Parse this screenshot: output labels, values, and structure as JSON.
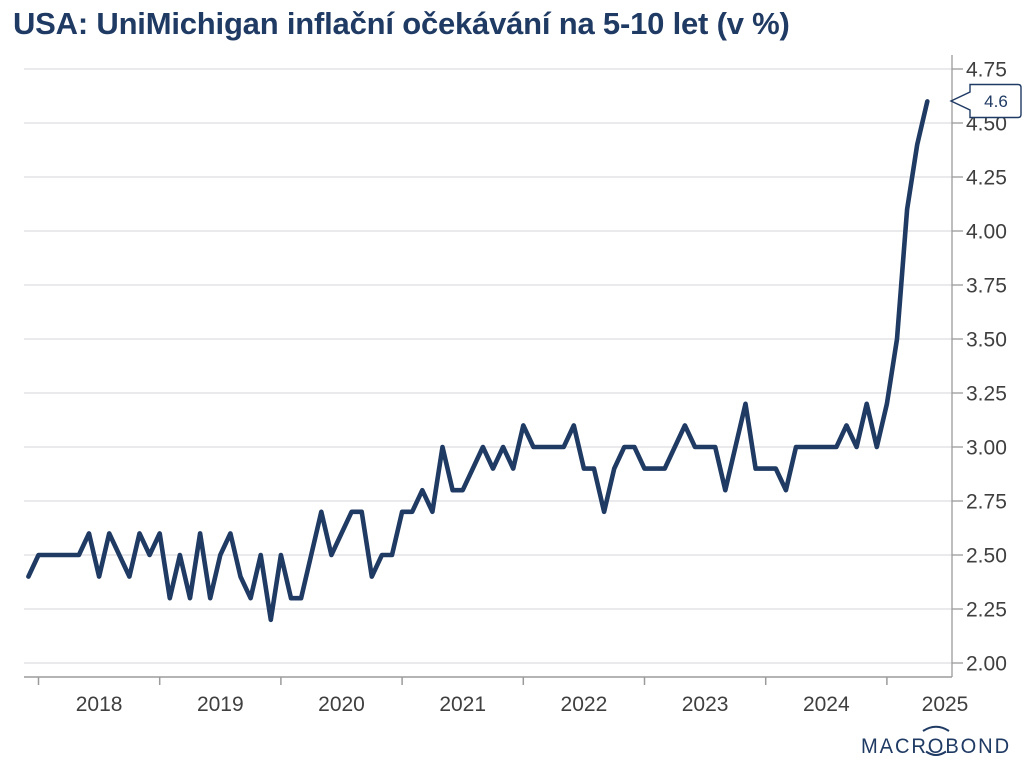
{
  "title": "USA: UniMichigan inflační očekávání na 5-10 let (v %)",
  "callout": {
    "value": "4.6"
  },
  "logo": {
    "brand": "MACROBOND"
  },
  "colors": {
    "line": "#1f3a63",
    "title": "#1f3a63",
    "axis_text": "#3f3f3f",
    "grid": "#e3e3e7",
    "spine": "#9b9b9b",
    "callout_border": "#1f3a63",
    "callout_fill": "#ffffff"
  },
  "chart_data": {
    "type": "line",
    "title": "USA: UniMichigan inflační očekávání na 5-10 let (v %)",
    "series": [
      {
        "name": "UniMichigan inflační očekávání na 5-10 let",
        "frequency": "monthly",
        "start": "2017-12",
        "end": "2025-05",
        "values": [
          2.4,
          2.5,
          2.5,
          2.5,
          2.5,
          2.5,
          2.6,
          2.4,
          2.6,
          2.5,
          2.4,
          2.6,
          2.5,
          2.6,
          2.3,
          2.5,
          2.3,
          2.6,
          2.3,
          2.5,
          2.6,
          2.4,
          2.3,
          2.5,
          2.2,
          2.5,
          2.3,
          2.3,
          2.5,
          2.7,
          2.5,
          2.6,
          2.7,
          2.7,
          2.4,
          2.5,
          2.5,
          2.7,
          2.7,
          2.8,
          2.7,
          3.0,
          2.8,
          2.8,
          2.9,
          3.0,
          2.9,
          3.0,
          2.9,
          3.1,
          3.0,
          3.0,
          3.0,
          3.0,
          3.1,
          2.9,
          2.9,
          2.7,
          2.9,
          3.0,
          3.0,
          2.9,
          2.9,
          2.9,
          3.0,
          3.1,
          3.0,
          3.0,
          3.0,
          2.8,
          3.0,
          3.2,
          2.9,
          2.9,
          2.9,
          2.8,
          3.0,
          3.0,
          3.0,
          3.0,
          3.0,
          3.1,
          3.0,
          3.2,
          3.0,
          3.2,
          3.5,
          4.1,
          4.4,
          4.6
        ]
      }
    ],
    "last_value_annotation": "4.6",
    "x_tick_labels": [
      "2018",
      "2019",
      "2020",
      "2021",
      "2022",
      "2023",
      "2024",
      "2025"
    ],
    "y_ticks": [
      2.0,
      2.25,
      2.5,
      2.75,
      3.0,
      3.25,
      3.5,
      3.75,
      4.0,
      4.25,
      4.5,
      4.75
    ],
    "y_tick_labels": [
      "2.00",
      "2.25",
      "2.50",
      "2.75",
      "3.00",
      "3.25",
      "3.50",
      "3.75",
      "4.00",
      "4.25",
      "4.50",
      "4.75"
    ],
    "ylim": [
      1.93,
      4.8
    ],
    "y_axis_position": "right",
    "grid": "horizontal",
    "legend": "none"
  }
}
